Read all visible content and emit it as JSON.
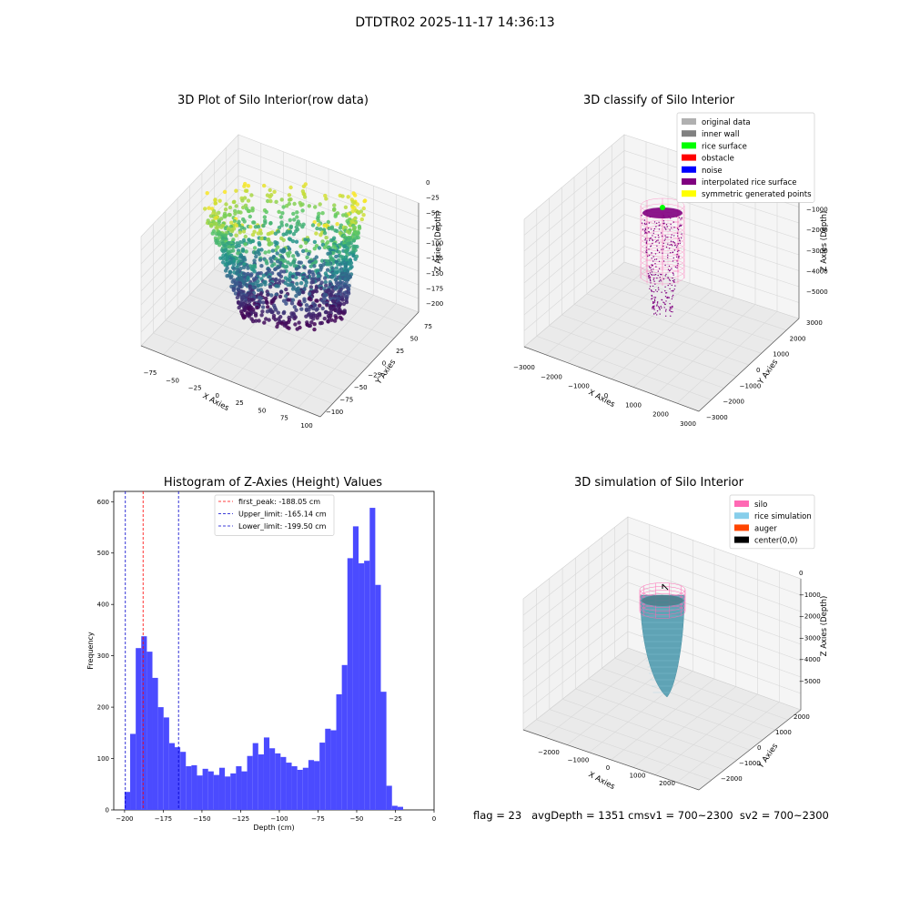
{
  "figure": {
    "suptitle": "DTDTR02 2025-11-17 14:36:13",
    "status_text": "flag = 23   avgDepth = 1351 cmsv1 = 700~2300  sv2 = 700~2300"
  },
  "chart_data": [
    {
      "type": "scatter",
      "title": "3D Plot of Silo Interior(row data)",
      "xlabel": "X Axies",
      "ylabel": "Y Axies",
      "zlabel": "Z Axies (Depth)",
      "x_ticks": [
        "−75",
        "−50",
        "−25",
        "0",
        "25",
        "50",
        "75",
        "100"
      ],
      "y_ticks": [
        "−100",
        "−75",
        "−50",
        "−25",
        "0",
        "25",
        "50",
        "75"
      ],
      "z_ticks": [
        "0",
        "−25",
        "−50",
        "−75",
        "−100",
        "−125",
        "−150",
        "−175",
        "−200"
      ],
      "zlim": [
        -210,
        0
      ],
      "colormap": "viridis",
      "grid": true
    },
    {
      "type": "scatter",
      "title": "3D classify of Silo Interior",
      "xlabel": "X Axies",
      "ylabel": "Y Axies",
      "zlabel": "Z Axies (Depth)",
      "x_ticks": [
        "−3000",
        "−2000",
        "−1000",
        "0",
        "1000",
        "2000",
        "3000"
      ],
      "y_ticks": [
        "−3000",
        "−2000",
        "−1000",
        "0",
        "1000",
        "2000",
        "3000"
      ],
      "z_ticks": [
        "0",
        "−1000",
        "−2000",
        "−3000",
        "−4000",
        "−5000"
      ],
      "legend_position": "top-right",
      "legend": [
        {
          "label": "original data",
          "color": "#b0b0b0"
        },
        {
          "label": "inner wall",
          "color": "#808080"
        },
        {
          "label": "rice surface",
          "color": "#00ff00"
        },
        {
          "label": "obstacle",
          "color": "#ff0000"
        },
        {
          "label": "noise",
          "color": "#0000ff"
        },
        {
          "label": "interpolated rice surface",
          "color": "#800080"
        },
        {
          "label": "symmetric generated points",
          "color": "#ffff00"
        }
      ],
      "grid": true
    },
    {
      "type": "bar",
      "title": "Histogram of Z-Axies (Height) Values",
      "xlabel": "Depth (cm)",
      "ylabel": "Frequency",
      "xlim": [
        -207,
        0
      ],
      "ylim": [
        0,
        620
      ],
      "x_ticks": [
        -200,
        -175,
        -150,
        -125,
        -100,
        -75,
        -50,
        -25,
        0
      ],
      "y_ticks": [
        0,
        100,
        200,
        300,
        400,
        500,
        600
      ],
      "bin_start": -200,
      "bin_width": 3.6,
      "values": [
        35,
        148,
        315,
        338,
        308,
        257,
        200,
        180,
        130,
        122,
        113,
        85,
        87,
        67,
        80,
        75,
        68,
        82,
        65,
        71,
        85,
        75,
        105,
        130,
        108,
        141,
        120,
        110,
        103,
        92,
        85,
        78,
        82,
        97,
        95,
        131,
        158,
        155,
        225,
        282,
        490,
        552,
        480,
        485,
        588,
        438,
        230,
        47,
        8,
        6
      ],
      "bar_color": "#4b4bff",
      "vlines": [
        {
          "label": "first_peak: -188.05 cm",
          "x": -188.05,
          "color": "#ff0000"
        },
        {
          "label": "Upper_limit: -165.14 cm",
          "x": -165.14,
          "color": "#0000cc"
        },
        {
          "label": "Lower_limit: -199.50 cm",
          "x": -199.5,
          "color": "#0000cc"
        }
      ],
      "legend_position": "top-center"
    },
    {
      "type": "surface",
      "title": "3D simulation of Silo Interior",
      "xlabel": "X Axies",
      "ylabel": "Y Axies",
      "zlabel": "Z Axies (Depth)",
      "x_ticks": [
        "−2000",
        "−1000",
        "0",
        "1000",
        "2000"
      ],
      "y_ticks": [
        "−2000",
        "−1000",
        "0",
        "1000",
        "2000"
      ],
      "z_ticks": [
        "0",
        "−1000",
        "−2000",
        "−3000",
        "−4000",
        "−5000"
      ],
      "legend_position": "top-right",
      "legend": [
        {
          "label": "silo",
          "color": "#ff69b4"
        },
        {
          "label": "rice simulation",
          "color": "#87ceeb"
        },
        {
          "label": "auger",
          "color": "#ff4500"
        },
        {
          "label": "center(0,0)",
          "color": "#000000"
        }
      ],
      "grid": true
    }
  ]
}
